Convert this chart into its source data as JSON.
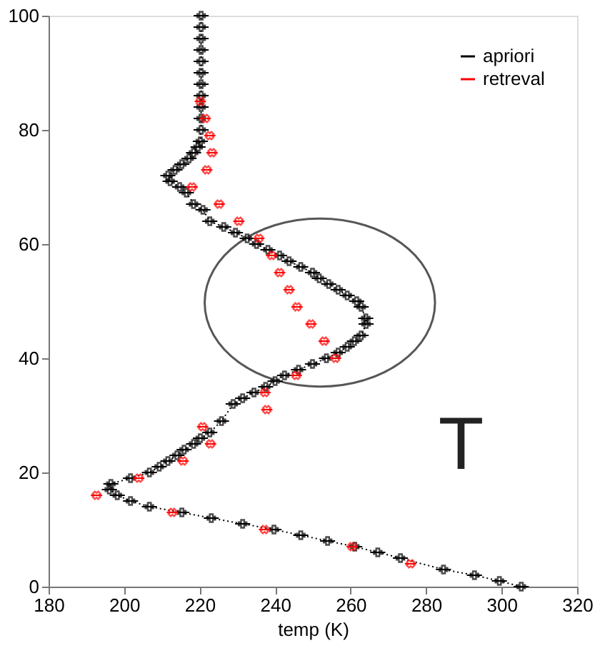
{
  "chart_data": {
    "type": "line",
    "xlabel": "temp  (K)",
    "annotations": [
      "T"
    ],
    "xlim": [
      180,
      320
    ],
    "xticks": [
      180,
      200,
      220,
      240,
      260,
      280,
      300,
      320
    ],
    "ylim": [
      0,
      100
    ],
    "yticks": [
      0,
      20,
      40,
      60,
      80,
      100
    ],
    "grid": false,
    "legend": "top right",
    "series": [
      {
        "name": "apriori",
        "color": "#000000",
        "marker": "cross",
        "line_style": "dotted",
        "x": [
          305.2,
          299.4,
          292.8,
          284.6,
          273.2,
          267.2,
          261.1,
          253.9,
          246.8,
          239.7,
          231.4,
          223.1,
          215.3,
          206.7,
          201.7,
          198.2,
          196.1,
          196.5,
          201.7,
          206.7,
          209.3,
          211.6,
          214.0,
          215.9,
          218.4,
          220.2,
          222.7,
          225.8,
          228.9,
          231.4,
          234.4,
          237.5,
          240.0,
          242.5,
          246.2,
          249.9,
          253.6,
          256.7,
          259.1,
          261.0,
          262.8,
          264.1,
          264.0,
          262.8,
          261.6,
          259.1,
          256.7,
          254.2,
          251.7,
          249.9,
          246.8,
          243.7,
          241.2,
          238.1,
          235.1,
          232.6,
          229.5,
          226.4,
          222.7,
          220.9,
          218.4,
          216.5,
          214.7,
          212.2,
          211.6,
          213.5,
          215.3,
          217.2,
          218.4,
          219.6,
          220.2,
          220.4,
          220.4,
          220.4,
          220.4,
          220.4,
          220.4,
          220.4,
          220.4,
          220.4,
          220.4,
          220.4
        ],
        "values": [
          0,
          1,
          2,
          3,
          5,
          6,
          7,
          8,
          9,
          10,
          11,
          12,
          13,
          14,
          15,
          16,
          17,
          18,
          19,
          20,
          21,
          22,
          23,
          24,
          25,
          26,
          27,
          29,
          32,
          33,
          34,
          35,
          36,
          37,
          38,
          39,
          40,
          41,
          42,
          43,
          44,
          46,
          47,
          49,
          50,
          51,
          52,
          53,
          54,
          55,
          56,
          57,
          58,
          59,
          60,
          61,
          62,
          63,
          64,
          66,
          67,
          69,
          70,
          71,
          72,
          73,
          74,
          75,
          76,
          77,
          78,
          80,
          82,
          84,
          86,
          88,
          90,
          92,
          94,
          96,
          98,
          100
        ],
        "xerrors": [
          2,
          2,
          2,
          2,
          2,
          2,
          2,
          2,
          2,
          2,
          2,
          2,
          2,
          2,
          2,
          2,
          2,
          2,
          2,
          2,
          2,
          2,
          2,
          2,
          2,
          2,
          2,
          2,
          2,
          2,
          2,
          2,
          2,
          2,
          2,
          2,
          2,
          2,
          2,
          2,
          2,
          2,
          2,
          2,
          2,
          2,
          2,
          2,
          2,
          2,
          2,
          2,
          2,
          2,
          2,
          2,
          2,
          2,
          2,
          2,
          2,
          2,
          2,
          2,
          2,
          2,
          2,
          2,
          2,
          2,
          2,
          2,
          2,
          2,
          2,
          2,
          2,
          2,
          2,
          2,
          2,
          2
        ]
      },
      {
        "name": "retreval",
        "type": "scatter",
        "color": "#ff0000",
        "marker": "cross",
        "x": [
          275.9,
          260.4,
          237.2,
          212.8,
          192.7,
          203.9,
          215.6,
          222.9,
          220.8,
          237.8,
          237.3,
          245.6,
          256.0,
          253.0,
          249.5,
          245.8,
          243.7,
          241.2,
          239.1,
          235.7,
          230.4,
          225.2,
          218.0,
          221.9,
          223.3,
          222.7,
          221.5,
          220.2
        ],
        "values": [
          4,
          7,
          10,
          13,
          16,
          19,
          22,
          25,
          28,
          31,
          34,
          37,
          40,
          43,
          46,
          49,
          52,
          55,
          58,
          61,
          64,
          67,
          70,
          73,
          76,
          79,
          82,
          85
        ],
        "xerrors": [
          1.5,
          1.5,
          1.5,
          1.5,
          1.5,
          1.5,
          1.5,
          1.5,
          1.5,
          1.5,
          1.5,
          1.5,
          1.5,
          1.5,
          1.5,
          1.5,
          1.5,
          1.5,
          1.5,
          1.5,
          1.5,
          1.5,
          1.5,
          1.5,
          1.5,
          1.5,
          1.5,
          1.5
        ]
      }
    ]
  }
}
